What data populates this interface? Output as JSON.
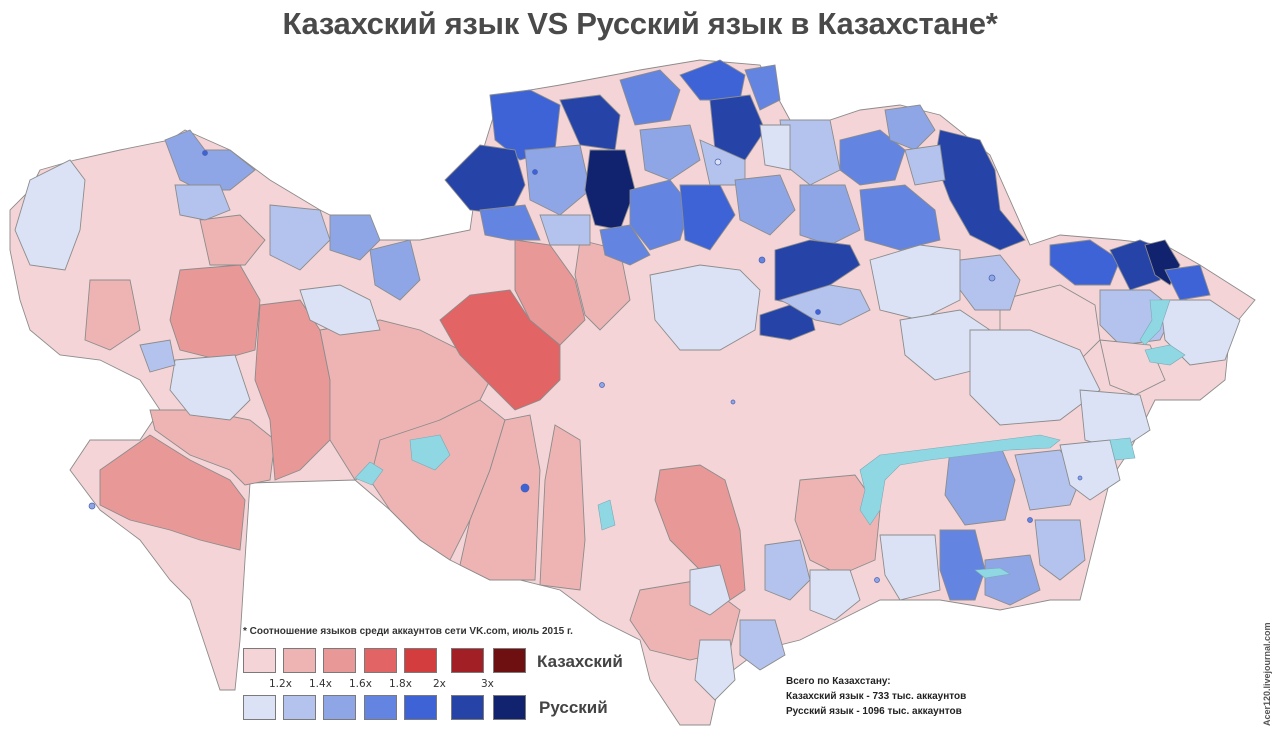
{
  "title": "Казахский язык VS Русский язык в Казахстане*",
  "footnote": "* Соотношение языков среди аккаунтов сети VK.com, июль 2015 г.",
  "legend": {
    "kazakh_label": "Казахский",
    "russian_label": "Русский",
    "kazakh_colors": [
      "#f4d4d6",
      "#eeb4b4",
      "#e99898",
      "#e26464",
      "#d43d3d",
      "#a31f26",
      "#6e1012"
    ],
    "russian_colors": [
      "#dbe2f5",
      "#b4c3ee",
      "#8fa6e6",
      "#6384e0",
      "#3d63d6",
      "#2644a8",
      "#11226e"
    ],
    "ticks": [
      "1.2x",
      "1.4x",
      "1.6x",
      "1.8x",
      "2x",
      "3x"
    ]
  },
  "totals": {
    "heading": "Всего по Казахстану:",
    "kazakh": "Казахский язык - 733 тыс. аккаунтов",
    "russian": "Русский язык - 1096 тыс. аккаунтов"
  },
  "credit": "Acer120.livejournal.com"
}
